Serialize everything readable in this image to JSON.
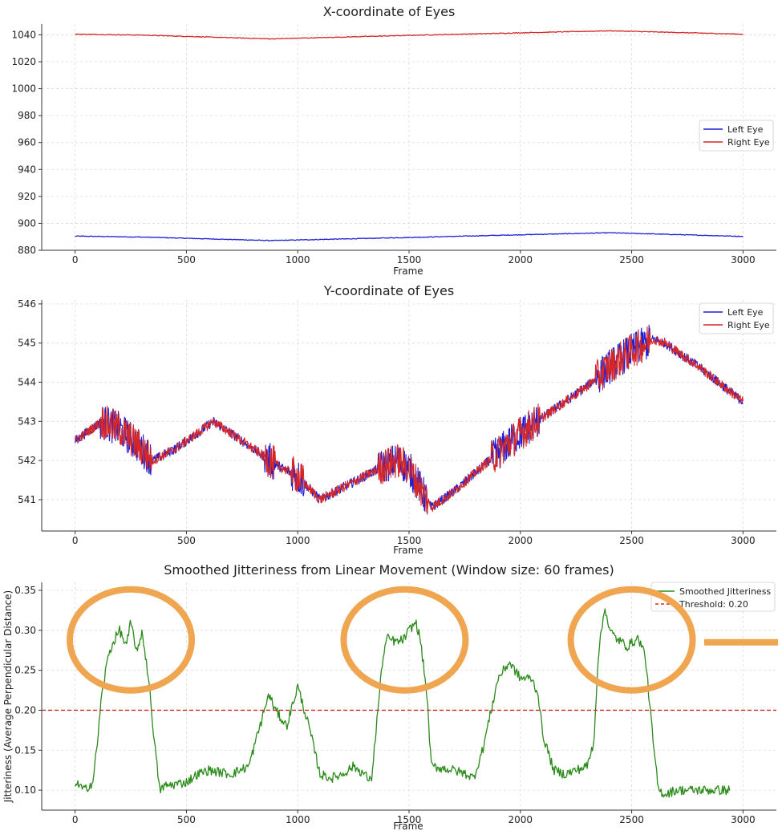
{
  "figure": {
    "annotation_color": "#f0a550",
    "panels": [
      {
        "title": "X-coordinate of Eyes",
        "xlabel": "Frame",
        "ylabel": "",
        "xlim": [
          -150,
          3150
        ],
        "ylim": [
          880,
          1048
        ],
        "xticks": [
          0,
          500,
          1000,
          1500,
          2000,
          2500,
          3000
        ],
        "yticks": [
          880,
          900,
          920,
          940,
          960,
          980,
          1000,
          1020,
          1040
        ],
        "legend": "right",
        "legend_entries": [
          "Left Eye",
          "Right Eye"
        ]
      },
      {
        "title": "Y-coordinate of Eyes",
        "xlabel": "Frame",
        "ylabel": "",
        "xlim": [
          -150,
          3150
        ],
        "ylim": [
          540.2,
          546.1
        ],
        "xticks": [
          0,
          500,
          1000,
          1500,
          2000,
          2500,
          3000
        ],
        "yticks": [
          541,
          542,
          543,
          544,
          545,
          546
        ],
        "legend": "top-right",
        "legend_entries": [
          "Left Eye",
          "Right Eye"
        ]
      },
      {
        "title": "Smoothed Jitteriness from Linear Movement (Window size: 60 frames)",
        "xlabel": "Frame",
        "ylabel": "Jitteriness (Average Perpendicular Distance)",
        "xlim": [
          -150,
          3150
        ],
        "ylim": [
          0.075,
          0.36
        ],
        "xticks": [
          0,
          500,
          1000,
          1500,
          2000,
          2500,
          3000
        ],
        "yticks": [
          0.1,
          0.15,
          0.2,
          0.25,
          0.3,
          0.35
        ],
        "ytick_labels": [
          "0.10",
          "0.15",
          "0.20",
          "0.25",
          "0.30",
          "0.35"
        ],
        "legend": "top-right",
        "legend_entries": [
          "Smoothed Jitteriness",
          "Threshold: 0.20"
        ]
      }
    ]
  },
  "chart_data": [
    {
      "type": "line",
      "title": "X-coordinate of Eyes",
      "xlabel": "Frame",
      "ylabel": "",
      "xlim": [
        -150,
        3150
      ],
      "ylim": [
        880,
        1048
      ],
      "grid": true,
      "legend": "right",
      "series": [
        {
          "name": "Left Eye",
          "color": "#1f1fd6",
          "x": [
            0,
            300,
            880,
            1500,
            2000,
            2400,
            3000
          ],
          "y": [
            890.5,
            889.8,
            887.2,
            889.5,
            891.5,
            893.0,
            890.3
          ]
        },
        {
          "name": "Right Eye",
          "color": "#d62728",
          "x": [
            0,
            300,
            880,
            1500,
            2000,
            2400,
            3000
          ],
          "y": [
            1040.5,
            1039.8,
            1037.0,
            1039.6,
            1041.5,
            1043.0,
            1040.5
          ]
        }
      ]
    },
    {
      "type": "line",
      "title": "Y-coordinate of Eyes",
      "xlabel": "Frame",
      "ylabel": "",
      "xlim": [
        -150,
        3150
      ],
      "ylim": [
        540.2,
        546.1
      ],
      "grid": true,
      "legend": "top-right",
      "series": [
        {
          "name": "Left Eye",
          "color": "#1f1fd6",
          "x": [
            0,
            120,
            200,
            280,
            350,
            450,
            550,
            620,
            700,
            800,
            900,
            1000,
            1100,
            1200,
            1300,
            1400,
            1450,
            1500,
            1550,
            1600,
            1700,
            1800,
            1900,
            2000,
            2100,
            2200,
            2300,
            2400,
            2500,
            2600,
            2650,
            2800,
            3000
          ],
          "y": [
            542.5,
            543.0,
            542.8,
            542.4,
            542.0,
            542.3,
            542.7,
            543.0,
            542.7,
            542.3,
            541.9,
            541.6,
            541.0,
            541.3,
            541.6,
            541.9,
            542.0,
            541.8,
            541.3,
            540.8,
            541.2,
            541.7,
            542.2,
            542.7,
            543.1,
            543.5,
            543.9,
            544.4,
            544.8,
            545.1,
            545.0,
            544.4,
            543.5
          ]
        },
        {
          "name": "Right Eye",
          "color": "#d62728",
          "x": [
            0,
            120,
            200,
            280,
            350,
            450,
            550,
            620,
            700,
            800,
            900,
            1000,
            1100,
            1200,
            1300,
            1400,
            1450,
            1500,
            1550,
            1600,
            1700,
            1800,
            1900,
            2000,
            2100,
            2200,
            2300,
            2400,
            2500,
            2600,
            2650,
            2800,
            3000
          ],
          "y": [
            542.5,
            543.0,
            542.8,
            542.4,
            542.0,
            542.3,
            542.7,
            543.0,
            542.7,
            542.3,
            541.9,
            541.6,
            541.0,
            541.3,
            541.6,
            541.9,
            542.0,
            541.8,
            541.3,
            540.8,
            541.2,
            541.7,
            542.2,
            542.7,
            543.1,
            543.5,
            543.9,
            544.4,
            544.8,
            545.1,
            545.0,
            544.4,
            543.5
          ]
        }
      ]
    },
    {
      "type": "line",
      "title": "Smoothed Jitteriness from Linear Movement (Window size: 60 frames)",
      "xlabel": "Frame",
      "ylabel": "Jitteriness (Average Perpendicular Distance)",
      "xlim": [
        -150,
        3150
      ],
      "ylim": [
        0.075,
        0.36
      ],
      "grid": true,
      "legend": "top-right",
      "series": [
        {
          "name": "Smoothed Jitteriness",
          "color": "#2a8a1a",
          "x": [
            0,
            40,
            80,
            100,
            120,
            150,
            180,
            200,
            230,
            250,
            280,
            300,
            330,
            360,
            380,
            400,
            500,
            550,
            600,
            700,
            780,
            830,
            870,
            900,
            950,
            1000,
            1050,
            1100,
            1150,
            1200,
            1250,
            1300,
            1330,
            1350,
            1380,
            1400,
            1450,
            1480,
            1500,
            1530,
            1550,
            1580,
            1600,
            1700,
            1760,
            1790,
            1830,
            1900,
            1950,
            2000,
            2050,
            2080,
            2100,
            2150,
            2200,
            2250,
            2300,
            2330,
            2350,
            2380,
            2400,
            2430,
            2480,
            2530,
            2560,
            2580,
            2600,
            2620,
            2650,
            2700,
            2800,
            2940
          ],
          "y": [
            0.11,
            0.1,
            0.11,
            0.16,
            0.22,
            0.27,
            0.29,
            0.3,
            0.28,
            0.31,
            0.27,
            0.3,
            0.24,
            0.15,
            0.1,
            0.105,
            0.11,
            0.12,
            0.125,
            0.12,
            0.13,
            0.18,
            0.22,
            0.2,
            0.18,
            0.23,
            0.18,
            0.12,
            0.115,
            0.12,
            0.13,
            0.12,
            0.11,
            0.17,
            0.26,
            0.29,
            0.285,
            0.29,
            0.3,
            0.31,
            0.29,
            0.22,
            0.13,
            0.125,
            0.12,
            0.115,
            0.15,
            0.24,
            0.26,
            0.24,
            0.24,
            0.22,
            0.17,
            0.125,
            0.12,
            0.125,
            0.13,
            0.16,
            0.27,
            0.33,
            0.3,
            0.29,
            0.28,
            0.29,
            0.27,
            0.21,
            0.15,
            0.1,
            0.095,
            0.1,
            0.1,
            0.1
          ]
        },
        {
          "name": "Threshold: 0.20",
          "color": "#d62728",
          "style": "dashed",
          "x": [
            -150,
            3150
          ],
          "y": [
            0.2,
            0.2
          ]
        }
      ]
    }
  ]
}
